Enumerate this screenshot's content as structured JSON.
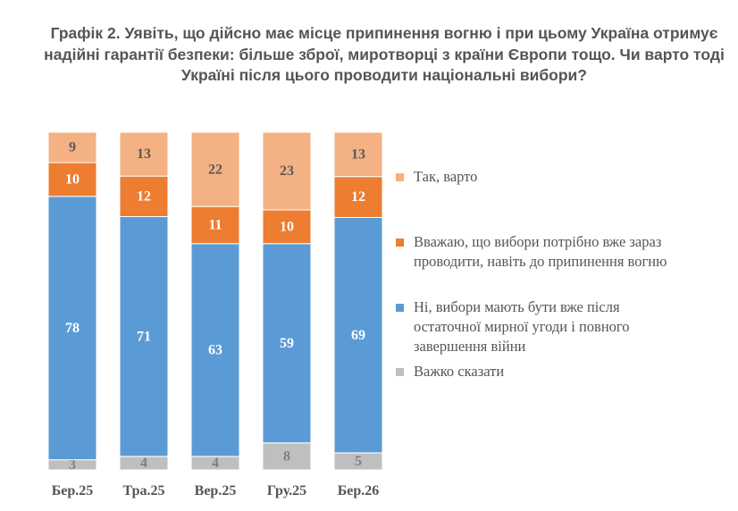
{
  "title": {
    "line1": "Графік 2. Уявіть, що дійсно має місце припинення вогню і при цьому Україна отримує",
    "line2": "надійні гарантії безпеки: більше зброї, миротворці з країни Європи тощо. Чи варто тоді",
    "line3": "Україні після цього проводити національні вибори?"
  },
  "colors": {
    "yes": "#F4B183",
    "now": "#ED7D31",
    "no": "#5B9BD5",
    "hard": "#BFBFBF"
  },
  "chart_data": {
    "type": "bar",
    "stacked": true,
    "percent": true,
    "categories": [
      "Бер.25",
      "Тра.25",
      "Вер.25",
      "Гру.25",
      "Бер.26"
    ],
    "series": [
      {
        "key": "hard",
        "name": "Важко сказати",
        "values": [
          3,
          4,
          4,
          8,
          5
        ]
      },
      {
        "key": "no",
        "name": "Ні, вибори мають бути вже після остаточної мирної угоди і повного завершення війни",
        "values": [
          78,
          71,
          63,
          59,
          69
        ]
      },
      {
        "key": "now",
        "name": "Вважаю, що вибори потрібно вже зараз проводити, навіть до припинення вогню",
        "values": [
          10,
          12,
          11,
          10,
          12
        ]
      },
      {
        "key": "yes",
        "name": "Так, варто",
        "values": [
          9,
          13,
          22,
          23,
          13
        ]
      }
    ],
    "legend_position": "right",
    "grid": false
  },
  "legend": [
    {
      "key": "yes",
      "lines": [
        "Так, варто"
      ]
    },
    {
      "key": "now",
      "lines": [
        "Вважаю, що вибори потрібно вже зараз",
        "проводити, навіть до припинення вогню"
      ]
    },
    {
      "key": "no",
      "lines": [
        "Ні, вибори мають бути вже після",
        "остаточної мирної угоди і повного",
        "завершення війни"
      ]
    },
    {
      "key": "hard",
      "lines": [
        "Важко сказати"
      ]
    }
  ]
}
